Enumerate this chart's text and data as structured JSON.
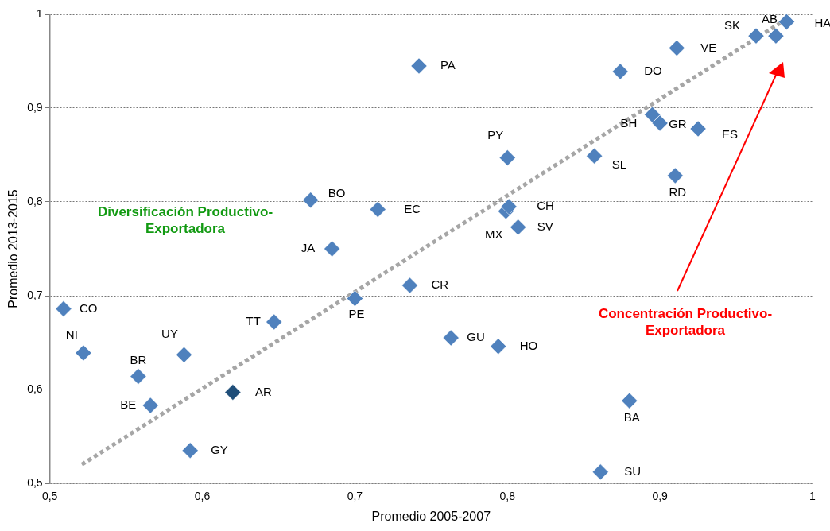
{
  "chart_data": {
    "type": "scatter",
    "xlabel": "Promedio 2005-2007",
    "ylabel": "Promedio 2013-2015",
    "xlim": [
      0.5,
      1
    ],
    "xticks": [
      {
        "value": 0.5,
        "label": "0,5"
      },
      {
        "value": 0.6,
        "label": "0,6"
      },
      {
        "value": 0.7,
        "label": "0,7"
      },
      {
        "value": 0.8,
        "label": "0,8"
      },
      {
        "value": 0.9,
        "label": "0,9"
      },
      1
    ],
    "ylim": [
      0.5,
      1
    ],
    "yticks": [
      {
        "value": 0.5,
        "label": "0,5"
      },
      {
        "value": 0.6,
        "label": "0,6"
      },
      {
        "value": 0.7,
        "label": "0,7"
      },
      {
        "value": 0.8,
        "label": "0,8"
      },
      {
        "value": 0.9,
        "label": "0,9"
      },
      1
    ],
    "grid": "y",
    "legend": false,
    "marker": "diamond",
    "annotations": [
      "Diversificación Productivo-Exportadora",
      "Concentración Productivo-Exportadora"
    ],
    "series": [
      {
        "name": "CO",
        "color": "#4f81bd",
        "x": [
          0.509
        ],
        "values": [
          0.686
        ]
      },
      {
        "name": "NI",
        "color": "#4f81bd",
        "x": [
          0.522
        ],
        "values": [
          0.639
        ]
      },
      {
        "name": "BR",
        "color": "#4f81bd",
        "x": [
          0.558
        ],
        "values": [
          0.614
        ]
      },
      {
        "name": "BE",
        "color": "#4f81bd",
        "x": [
          0.566
        ],
        "values": [
          0.583
        ]
      },
      {
        "name": "UY",
        "color": "#4f81bd",
        "x": [
          0.588
        ],
        "values": [
          0.637
        ]
      },
      {
        "name": "GY",
        "color": "#4f81bd",
        "x": [
          0.592
        ],
        "values": [
          0.535
        ]
      },
      {
        "name": "AR",
        "color": "#1f4e79",
        "x": [
          0.62
        ],
        "values": [
          0.597
        ]
      },
      {
        "name": "TT",
        "color": "#4f81bd",
        "x": [
          0.647
        ],
        "values": [
          0.672
        ]
      },
      {
        "name": "PE",
        "color": "#4f81bd",
        "x": [
          0.7
        ],
        "values": [
          0.697
        ]
      },
      {
        "name": "JA",
        "color": "#4f81bd",
        "x": [
          0.685
        ],
        "values": [
          0.75
        ]
      },
      {
        "name": "BO",
        "color": "#4f81bd",
        "x": [
          0.671
        ],
        "values": [
          0.802
        ]
      },
      {
        "name": "EC",
        "color": "#4f81bd",
        "x": [
          0.715
        ],
        "values": [
          0.792
        ]
      },
      {
        "name": "CR",
        "color": "#4f81bd",
        "x": [
          0.736
        ],
        "values": [
          0.711
        ]
      },
      {
        "name": "PA",
        "color": "#4f81bd",
        "x": [
          0.742
        ],
        "values": [
          0.945
        ]
      },
      {
        "name": "GU",
        "color": "#4f81bd",
        "x": [
          0.763
        ],
        "values": [
          0.655
        ]
      },
      {
        "name": "HO",
        "color": "#4f81bd",
        "x": [
          0.794
        ],
        "values": [
          0.646
        ]
      },
      {
        "name": "PY",
        "color": "#4f81bd",
        "x": [
          0.8
        ],
        "values": [
          0.847
        ]
      },
      {
        "name": "CH",
        "color": "#4f81bd",
        "x": [
          0.801
        ],
        "values": [
          0.795
        ]
      },
      {
        "name": "MX",
        "color": "#4f81bd",
        "x": [
          0.799
        ],
        "values": [
          0.79
        ]
      },
      {
        "name": "SV",
        "color": "#4f81bd",
        "x": [
          0.807
        ],
        "values": [
          0.773
        ]
      },
      {
        "name": "BA",
        "color": "#4f81bd",
        "x": [
          0.88
        ],
        "values": [
          0.588
        ]
      },
      {
        "name": "SU",
        "color": "#4f81bd",
        "x": [
          0.861
        ],
        "values": [
          0.512
        ]
      },
      {
        "name": "SL",
        "color": "#4f81bd",
        "x": [
          0.857
        ],
        "values": [
          0.849
        ]
      },
      {
        "name": "DO",
        "color": "#4f81bd",
        "x": [
          0.874
        ],
        "values": [
          0.939
        ]
      },
      {
        "name": "VE",
        "color": "#4f81bd",
        "x": [
          0.911
        ],
        "values": [
          0.964
        ]
      },
      {
        "name": "BH",
        "color": "#4f81bd",
        "x": [
          0.895
        ],
        "values": [
          0.893
        ]
      },
      {
        "name": "GR",
        "color": "#4f81bd",
        "x": [
          0.9
        ],
        "values": [
          0.884
        ]
      },
      {
        "name": "ES",
        "color": "#4f81bd",
        "x": [
          0.925
        ],
        "values": [
          0.878
        ]
      },
      {
        "name": "RD",
        "color": "#4f81bd",
        "x": [
          0.91
        ],
        "values": [
          0.828
        ]
      },
      {
        "name": "SK",
        "color": "#4f81bd",
        "x": [
          0.963
        ],
        "values": [
          0.977
        ]
      },
      {
        "name": "AB",
        "color": "#4f81bd",
        "x": [
          0.976
        ],
        "values": [
          0.977
        ]
      },
      {
        "name": "HA",
        "color": "#4f81bd",
        "x": [
          0.983
        ],
        "values": [
          0.992
        ]
      },
      {
        "type": "line",
        "color": "#a6a6a6",
        "line_style": "dotted",
        "marker": "none",
        "x": [
          0.521,
          0.983
        ],
        "values": [
          0.52,
          0.995
        ]
      }
    ]
  }
}
